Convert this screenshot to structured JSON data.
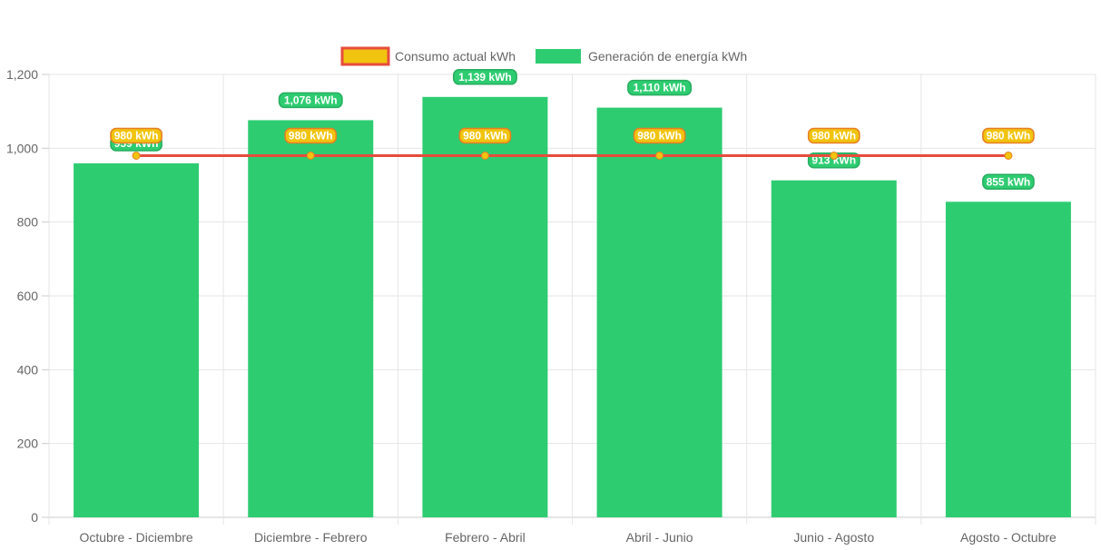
{
  "chart_data": {
    "type": "bar",
    "categories": [
      "Octubre - Diciembre",
      "Diciembre - Febrero",
      "Febrero - Abril",
      "Abril - Junio",
      "Junio - Agosto",
      "Agosto - Octubre"
    ],
    "ylim": [
      0,
      1200
    ],
    "yticks": [
      0,
      200,
      400,
      600,
      800,
      1000,
      1200
    ],
    "ytick_labels": [
      "0",
      "200",
      "400",
      "600",
      "800",
      "1,000",
      "1,200"
    ],
    "legend_position": "top-center",
    "grid": true,
    "series": [
      {
        "name": "Consumo actual kWh",
        "type": "line",
        "color": "#e74c3c",
        "point_color": "#f1c40f",
        "values": [
          980,
          980,
          980,
          980,
          980,
          980
        ],
        "labels": [
          "980 kWh",
          "980 kWh",
          "980 kWh",
          "980 kWh",
          "980 kWh",
          "980 kWh"
        ]
      },
      {
        "name": "Generación de energía kWh",
        "type": "bar",
        "color": "#2ecc71",
        "values": [
          959,
          1076,
          1139,
          1110,
          913,
          855
        ],
        "labels": [
          "959 kWh",
          "1,076 kWh",
          "1,139 kWh",
          "1,110 kWh",
          "913 kWh",
          "855 kWh"
        ]
      }
    ]
  }
}
